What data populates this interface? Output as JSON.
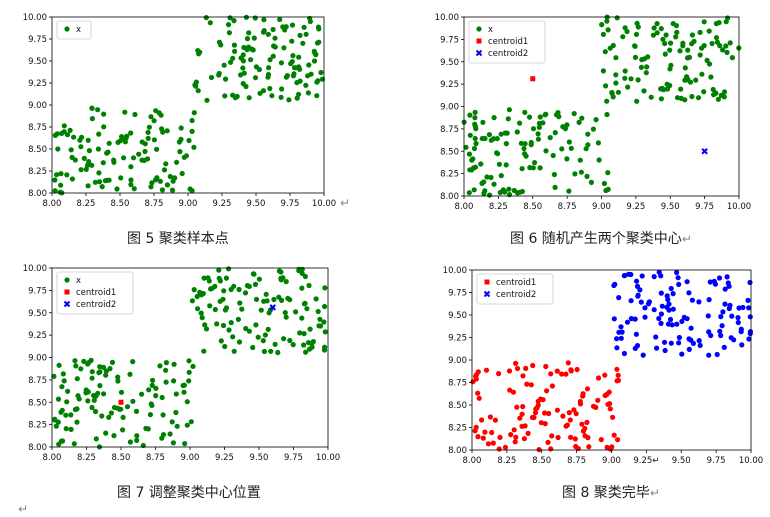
{
  "figures": [
    {
      "caption": "图 5  聚类样本点",
      "caption_return_mark": "",
      "trailing_mark": "↵",
      "seed": 11,
      "chart_data": {
        "type": "scatter",
        "xlim": [
          8.0,
          10.0
        ],
        "ylim": [
          8.0,
          10.0
        ],
        "xticks": [
          "8.00",
          "8.25",
          "8.50",
          "8.75",
          "9.00",
          "9.25",
          "9.50",
          "9.75",
          "10.00"
        ],
        "yticks": [
          "8.00",
          "8.25",
          "8.50",
          "8.75",
          "9.00",
          "9.25",
          "9.50",
          "9.75",
          "10.00"
        ],
        "legend_position": "top-left",
        "legend": [
          {
            "label": "x",
            "marker": "circle",
            "color": "#008000"
          }
        ],
        "clusters": [
          {
            "color": "#008000",
            "x_range": [
              8.0,
              9.05
            ],
            "y_range": [
              8.0,
              8.97
            ],
            "n": 120
          },
          {
            "color": "#008000",
            "x_range": [
              9.05,
              10.0
            ],
            "y_range": [
              9.05,
              10.0
            ],
            "n": 120
          }
        ],
        "centroids": []
      }
    },
    {
      "caption": "图 6  随机产生两个聚类中心",
      "caption_return_mark": "↵",
      "trailing_mark": "",
      "seed": 23,
      "chart_data": {
        "type": "scatter",
        "xlim": [
          8.0,
          10.0
        ],
        "ylim": [
          8.0,
          10.0
        ],
        "xticks": [
          "8.00",
          "8.25",
          "8.50",
          "8.75",
          "9.00",
          "9.25",
          "9.50",
          "9.75",
          "10.00"
        ],
        "yticks": [
          "8.00",
          "8.25",
          "8.50",
          "8.75",
          "9.00",
          "9.25",
          "9.50",
          "9.75",
          "10.00"
        ],
        "legend_position": "top-left",
        "legend": [
          {
            "label": "x",
            "marker": "circle",
            "color": "#008000"
          },
          {
            "label": "centroid1",
            "marker": "square",
            "color": "#ff0000"
          },
          {
            "label": "centroid2",
            "marker": "x",
            "color": "#0000ff"
          }
        ],
        "clusters": [
          {
            "color": "#008000",
            "x_range": [
              8.0,
              9.05
            ],
            "y_range": [
              8.0,
              8.97
            ],
            "n": 120
          },
          {
            "color": "#008000",
            "x_range": [
              9.0,
              10.0
            ],
            "y_range": [
              9.05,
              10.0
            ],
            "n": 120
          }
        ],
        "centroids": [
          {
            "name": "centroid1",
            "x": 8.5,
            "y": 9.31,
            "color": "#ff0000",
            "marker": "square"
          },
          {
            "name": "centroid2",
            "x": 9.75,
            "y": 8.5,
            "color": "#0000ff",
            "marker": "x"
          }
        ]
      }
    },
    {
      "caption": "图 7  调整聚类中心位置",
      "caption_return_mark": "",
      "trailing_mark": "",
      "seed": 37,
      "chart_data": {
        "type": "scatter",
        "xlim": [
          8.0,
          10.0
        ],
        "ylim": [
          8.0,
          10.0
        ],
        "xticks": [
          "8.00",
          "8.25",
          "8.50",
          "8.75",
          "9.00",
          "9.25",
          "9.50",
          "9.75",
          "10.00"
        ],
        "yticks": [
          "8.00",
          "8.25",
          "8.50",
          "8.75",
          "9.00",
          "9.25",
          "9.50",
          "9.75",
          "10.00"
        ],
        "legend_position": "top-left",
        "legend": [
          {
            "label": "x",
            "marker": "circle",
            "color": "#008000"
          },
          {
            "label": "centroid1",
            "marker": "square",
            "color": "#ff0000"
          },
          {
            "label": "centroid2",
            "marker": "x",
            "color": "#0000ff"
          }
        ],
        "clusters": [
          {
            "color": "#008000",
            "x_range": [
              8.0,
              9.05
            ],
            "y_range": [
              8.0,
              8.97
            ],
            "n": 120
          },
          {
            "color": "#008000",
            "x_range": [
              9.0,
              10.0
            ],
            "y_range": [
              9.05,
              10.0
            ],
            "n": 120
          }
        ],
        "centroids": [
          {
            "name": "centroid1",
            "x": 8.5,
            "y": 8.5,
            "color": "#ff0000",
            "marker": "square"
          },
          {
            "name": "centroid2",
            "x": 9.6,
            "y": 9.56,
            "color": "#0000ff",
            "marker": "x"
          }
        ]
      }
    },
    {
      "caption": "图 8  聚类完毕",
      "caption_return_mark": "↵",
      "trailing_mark": "",
      "seed": 51,
      "chart_data": {
        "type": "scatter",
        "xlim": [
          8.0,
          10.0
        ],
        "ylim": [
          8.0,
          10.0
        ],
        "xticks": [
          "8.00",
          "8.25",
          "8.50",
          "8.75",
          "9.00",
          "9.25↵",
          "9.50",
          "9.75",
          "10.00"
        ],
        "yticks": [
          "8.00",
          "8.25",
          "8.50",
          "8.75",
          "9.00",
          "9.25",
          "9.50",
          "9.75",
          "10.00"
        ],
        "legend_position": "top-left",
        "legend": [
          {
            "label": "centroid1",
            "marker": "square",
            "color": "#ff0000"
          },
          {
            "label": "centroid2",
            "marker": "x",
            "color": "#0000ff"
          }
        ],
        "clusters": [
          {
            "color": "#ff0000",
            "x_range": [
              8.0,
              9.05
            ],
            "y_range": [
              8.0,
              8.97
            ],
            "n": 120
          },
          {
            "color": "#0000ff",
            "x_range": [
              9.0,
              10.0
            ],
            "y_range": [
              9.05,
              10.0
            ],
            "n": 120
          }
        ],
        "centroids": []
      }
    }
  ],
  "stray_mark": "↵"
}
